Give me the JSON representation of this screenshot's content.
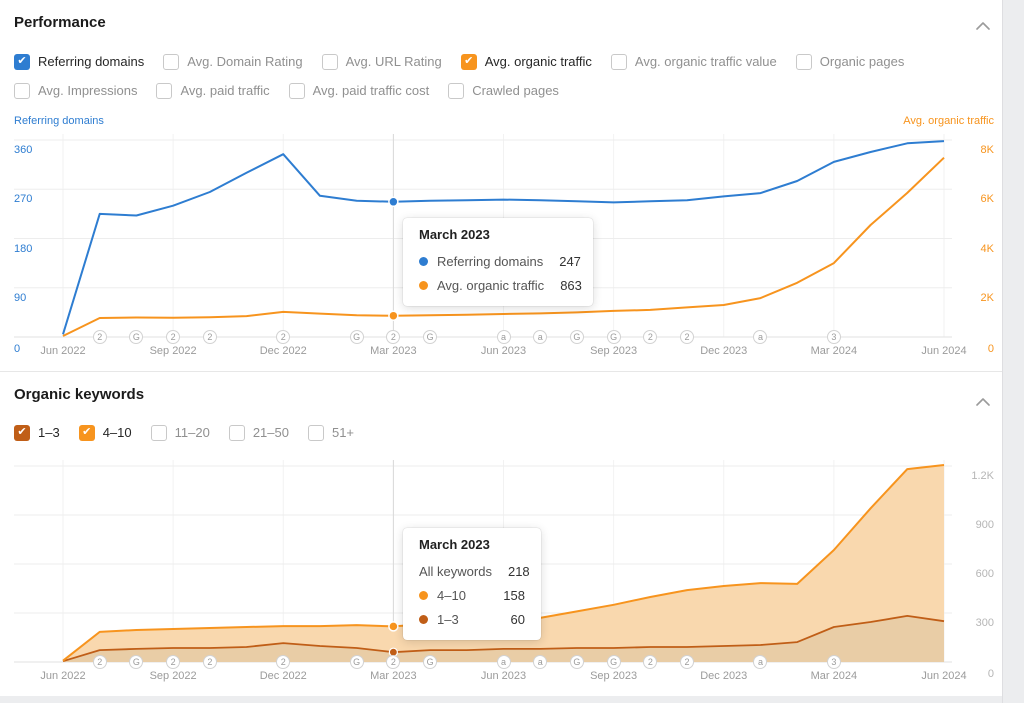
{
  "performance": {
    "title": "Performance",
    "metrics_row1": [
      {
        "label": "Referring domains",
        "checked": true,
        "color": "#2e7dd1"
      },
      {
        "label": "Avg. Domain Rating",
        "checked": false
      },
      {
        "label": "Avg. URL Rating",
        "checked": false
      },
      {
        "label": "Avg. organic traffic",
        "checked": true,
        "color": "#f7941e"
      },
      {
        "label": "Avg. organic traffic value",
        "checked": false
      },
      {
        "label": "Organic pages",
        "checked": false
      }
    ],
    "metrics_row2": [
      {
        "label": "Avg. Impressions",
        "checked": false
      },
      {
        "label": "Avg. paid traffic",
        "checked": false
      },
      {
        "label": "Avg. paid traffic cost",
        "checked": false
      },
      {
        "label": "Crawled pages",
        "checked": false
      }
    ]
  },
  "organic_keywords": {
    "title": "Organic keywords",
    "filters": [
      {
        "label": "1–3",
        "checked": true,
        "color": "#c05e17"
      },
      {
        "label": "4–10",
        "checked": true,
        "color": "#f7941e"
      },
      {
        "label": "11–20",
        "checked": false
      },
      {
        "label": "21–50",
        "checked": false
      },
      {
        "label": "51+",
        "checked": false
      }
    ]
  },
  "tooltips": {
    "performance": {
      "title": "March 2023",
      "rows": [
        {
          "dot": "#2e7dd1",
          "label": "Referring domains",
          "value": "247"
        },
        {
          "dot": "#f7941e",
          "label": "Avg. organic traffic",
          "value": "863"
        }
      ]
    },
    "keywords": {
      "title": "March 2023",
      "rows": [
        {
          "label": "All keywords",
          "value": "218"
        },
        {
          "dot": "#f7941e",
          "label": "4–10",
          "value": "158"
        },
        {
          "dot": "#c05e17",
          "label": "1–3",
          "value": "60"
        }
      ]
    }
  },
  "chart_data": [
    {
      "type": "line",
      "title": "Performance",
      "x": [
        "Jun 2022",
        "Jul 2022",
        "Aug 2022",
        "Sep 2022",
        "Oct 2022",
        "Nov 2022",
        "Dec 2022",
        "Jan 2023",
        "Feb 2023",
        "Mar 2023",
        "Apr 2023",
        "May 2023",
        "Jun 2023",
        "Jul 2023",
        "Aug 2023",
        "Sep 2023",
        "Oct 2023",
        "Nov 2023",
        "Dec 2023",
        "Jan 2024",
        "Feb 2024",
        "Mar 2024",
        "Apr 2024",
        "May 2024",
        "Jun 2024"
      ],
      "x_ticks": [
        "Jun 2022",
        "Sep 2022",
        "Dec 2022",
        "Mar 2023",
        "Jun 2023",
        "Sep 2023",
        "Dec 2023",
        "Mar 2024",
        "Jun 2024"
      ],
      "hover_index": 9,
      "grid": true,
      "left_axis": {
        "label": "Referring domains",
        "color": "#2e7dd1",
        "max": 360,
        "ticks": [
          "360",
          "270",
          "180",
          "90",
          "0"
        ]
      },
      "right_axis": {
        "label": "Avg. organic traffic",
        "color": "#f7941e",
        "max": 8000,
        "ticks": [
          "8K",
          "6K",
          "4K",
          "2K",
          "0"
        ]
      },
      "series": [
        {
          "name": "Referring domains",
          "axis": "left",
          "color": "#2e7dd1",
          "values": [
            5,
            225,
            222,
            240,
            265,
            300,
            334,
            258,
            249,
            247,
            249,
            250,
            251,
            250,
            248,
            246,
            248,
            250,
            257,
            263,
            285,
            320,
            338,
            354,
            358
          ]
        },
        {
          "name": "Avg. organic traffic",
          "axis": "right",
          "color": "#f7941e",
          "values": [
            40,
            770,
            790,
            780,
            800,
            850,
            1020,
            950,
            880,
            863,
            880,
            900,
            935,
            960,
            1000,
            1060,
            1100,
            1200,
            1300,
            1580,
            2200,
            3000,
            4550,
            5850,
            7280
          ]
        }
      ],
      "event_markers": [
        {
          "i": 1,
          "label": "2"
        },
        {
          "i": 2,
          "label": "G"
        },
        {
          "i": 3,
          "label": "2"
        },
        {
          "i": 4,
          "label": "2"
        },
        {
          "i": 6,
          "label": "2"
        },
        {
          "i": 8,
          "label": "G"
        },
        {
          "i": 9,
          "label": "2"
        },
        {
          "i": 10,
          "label": "G"
        },
        {
          "i": 12,
          "label": "a"
        },
        {
          "i": 13,
          "label": "a"
        },
        {
          "i": 14,
          "label": "G"
        },
        {
          "i": 15,
          "label": "G"
        },
        {
          "i": 16,
          "label": "2"
        },
        {
          "i": 17,
          "label": "2"
        },
        {
          "i": 19,
          "label": "a"
        },
        {
          "i": 21,
          "label": "3"
        }
      ]
    },
    {
      "type": "area",
      "stacked": true,
      "title": "Organic keywords",
      "x": [
        "Jun 2022",
        "Jul 2022",
        "Aug 2022",
        "Sep 2022",
        "Oct 2022",
        "Nov 2022",
        "Dec 2022",
        "Jan 2023",
        "Feb 2023",
        "Mar 2023",
        "Apr 2023",
        "May 2023",
        "Jun 2023",
        "Jul 2023",
        "Aug 2023",
        "Sep 2023",
        "Oct 2023",
        "Nov 2023",
        "Dec 2023",
        "Jan 2024",
        "Feb 2024",
        "Mar 2024",
        "Apr 2024",
        "May 2024",
        "Jun 2024"
      ],
      "x_ticks": [
        "Jun 2022",
        "Sep 2022",
        "Dec 2022",
        "Mar 2023",
        "Jun 2023",
        "Sep 2023",
        "Dec 2023",
        "Mar 2024",
        "Jun 2024"
      ],
      "hover_index": 9,
      "grid": true,
      "right_axis": {
        "color": "#b5b5b5",
        "max": 1200,
        "ticks": [
          "1.2K",
          "900",
          "600",
          "300",
          "0"
        ]
      },
      "series": [
        {
          "name": "1–3",
          "color": "#c05e17",
          "fill": "#e9cda6",
          "values": [
            5,
            73,
            80,
            86,
            86,
            92,
            116,
            98,
            86,
            60,
            73,
            73,
            80,
            80,
            86,
            86,
            92,
            92,
            98,
            104,
            122,
            214,
            245,
            282,
            250
          ]
        },
        {
          "name": "4–10",
          "color": "#f7941e",
          "fill": "#f9d8ae",
          "values": [
            3,
            111,
            116,
            116,
            122,
            122,
            104,
            122,
            140,
            158,
            160,
            160,
            159,
            190,
            224,
            264,
            306,
            348,
            367,
            379,
            356,
            472,
            696,
            899,
            956
          ]
        }
      ],
      "event_markers": [
        {
          "i": 1,
          "label": "2"
        },
        {
          "i": 2,
          "label": "G"
        },
        {
          "i": 3,
          "label": "2"
        },
        {
          "i": 4,
          "label": "2"
        },
        {
          "i": 6,
          "label": "2"
        },
        {
          "i": 8,
          "label": "G"
        },
        {
          "i": 9,
          "label": "2"
        },
        {
          "i": 10,
          "label": "G"
        },
        {
          "i": 12,
          "label": "a"
        },
        {
          "i": 13,
          "label": "a"
        },
        {
          "i": 14,
          "label": "G"
        },
        {
          "i": 15,
          "label": "G"
        },
        {
          "i": 16,
          "label": "2"
        },
        {
          "i": 17,
          "label": "2"
        },
        {
          "i": 19,
          "label": "a"
        },
        {
          "i": 21,
          "label": "3"
        }
      ]
    }
  ]
}
